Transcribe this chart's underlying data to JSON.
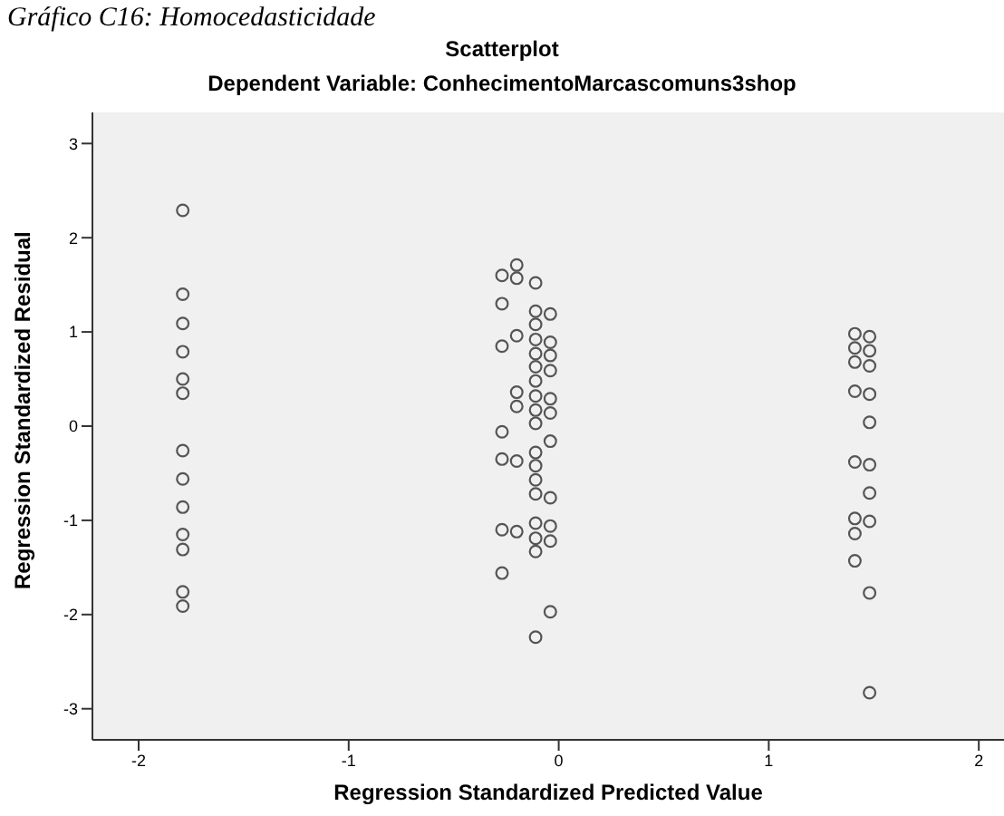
{
  "chart_data": {
    "type": "scatter",
    "title": "Scatterplot",
    "subtitle": "Dependent Variable: ConhecimentoMarcascomuns3shop",
    "annotations": [
      "Gráfico C16: Homocedasticidade"
    ],
    "xlabel": "Regression Standardized Predicted Value",
    "ylabel": "Regression Standardized Residual",
    "x": [
      -1.79,
      -1.79,
      -1.79,
      -1.79,
      -1.79,
      -1.79,
      -1.79,
      -1.79,
      -1.79,
      -1.79,
      -1.79,
      -1.79,
      -1.79,
      -0.2,
      -0.2,
      -0.27,
      -0.27,
      -0.27,
      -0.27,
      -0.27,
      -0.27,
      -0.27,
      -0.2,
      -0.2,
      -0.2,
      -0.2,
      -0.2,
      -0.11,
      -0.11,
      -0.11,
      -0.11,
      -0.11,
      -0.11,
      -0.11,
      -0.11,
      -0.11,
      -0.11,
      -0.11,
      -0.11,
      -0.11,
      -0.11,
      -0.11,
      -0.11,
      -0.11,
      -0.11,
      -0.04,
      -0.04,
      -0.04,
      -0.04,
      -0.04,
      -0.04,
      -0.04,
      -0.04,
      -0.04,
      -0.04,
      -0.04,
      1.41,
      1.41,
      1.41,
      1.41,
      1.41,
      1.41,
      1.41,
      1.41,
      1.48,
      1.48,
      1.48,
      1.48,
      1.48,
      1.48,
      1.48,
      1.48,
      1.48,
      1.48
    ],
    "values": [
      2.29,
      1.4,
      1.09,
      0.79,
      0.5,
      0.35,
      -0.26,
      -0.56,
      -0.86,
      -1.15,
      -1.31,
      -1.76,
      -1.91,
      1.71,
      1.57,
      1.6,
      1.3,
      0.85,
      -0.06,
      -0.35,
      -1.1,
      -1.56,
      0.96,
      0.36,
      0.21,
      -0.37,
      -1.12,
      1.52,
      1.22,
      1.08,
      0.92,
      0.77,
      0.63,
      0.48,
      0.32,
      0.17,
      0.03,
      -0.28,
      -0.42,
      -0.57,
      -0.72,
      -1.03,
      -1.19,
      -1.33,
      -2.24,
      1.19,
      0.89,
      0.75,
      0.59,
      0.29,
      0.14,
      -0.16,
      -0.76,
      -1.06,
      -1.22,
      -1.97,
      0.98,
      0.83,
      0.68,
      0.37,
      -0.38,
      -0.98,
      -1.14,
      -1.43,
      0.95,
      0.8,
      0.64,
      0.34,
      0.04,
      -0.41,
      -0.71,
      -1.01,
      -1.77,
      -2.83
    ],
    "color": "#555555",
    "marker": "circle",
    "xlim": [
      -2.22,
      2.12
    ],
    "ylim": [
      -3.33,
      3.33
    ],
    "xticks": [
      -2,
      -1,
      0,
      1,
      2
    ],
    "yticks": [
      -3,
      -2,
      -1,
      0,
      1,
      2,
      3
    ],
    "grid": false
  }
}
